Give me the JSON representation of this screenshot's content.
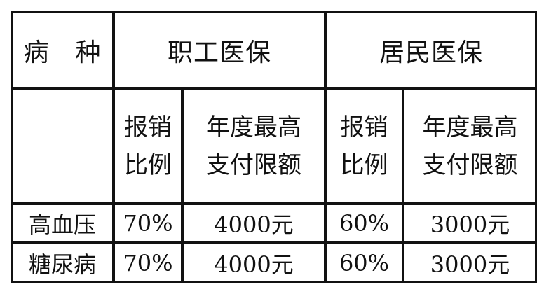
{
  "table": {
    "header": {
      "disease_label": "病　种",
      "group_employee": "职工医保",
      "group_resident": "居民医保"
    },
    "subheader": {
      "employee_ratio": "报销\n比例",
      "employee_limit": "年度最高\n支付限额",
      "resident_ratio": "报销\n比例",
      "resident_limit": "年度最高\n支付限额"
    },
    "rows": [
      {
        "disease": "高血压",
        "employee_ratio": "70%",
        "employee_limit": "4000元",
        "resident_ratio": "60%",
        "resident_limit": "3000元"
      },
      {
        "disease": "糖尿病",
        "employee_ratio": "70%",
        "employee_limit": "4000元",
        "resident_ratio": "60%",
        "resident_limit": "3000元"
      }
    ]
  }
}
